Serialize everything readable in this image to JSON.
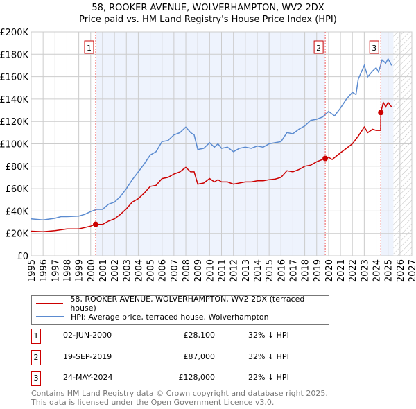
{
  "title": [
    "58, ROOKER AVENUE, WOLVERHAMPTON, WV2 2DX",
    "Price paid vs. HM Land Registry's House Price Index (HPI)"
  ],
  "chart_data": {
    "type": "line",
    "ylim": [
      0,
      200000
    ],
    "xlim": [
      1995,
      2027
    ],
    "yticks": [
      0,
      20000,
      40000,
      60000,
      80000,
      100000,
      120000,
      140000,
      160000,
      180000,
      200000
    ],
    "ytick_labels": [
      "£0",
      "£20K",
      "£40K",
      "£60K",
      "£80K",
      "£100K",
      "£120K",
      "£140K",
      "£160K",
      "£180K",
      "£200K"
    ],
    "xtick_labels": [
      "1995",
      "1996",
      "1997",
      "1998",
      "1999",
      "2000",
      "2001",
      "2002",
      "2003",
      "2004",
      "2005",
      "2006",
      "2007",
      "2008",
      "2009",
      "2010",
      "2011",
      "2012",
      "2013",
      "2014",
      "2015",
      "2016",
      "2017",
      "2018",
      "2019",
      "2020",
      "2021",
      "2022",
      "2023",
      "2024",
      "2025",
      "2026",
      "2027"
    ],
    "grid": true,
    "shaded_ranges": [
      [
        2000.42,
        2019.72
      ],
      [
        2024.39,
        2025.45
      ]
    ],
    "forecast_hatch_from": 2025.45,
    "series": [
      {
        "name": "58, ROOKER AVENUE, WOLVERHAMPTON, WV2 2DX (terraced house)",
        "color": "#cc0000",
        "x": [
          1995,
          1996,
          1997,
          1998,
          1999,
          2000,
          2000.42,
          2001,
          2001.5,
          2002,
          2002.5,
          2003,
          2003.5,
          2004,
          2004.5,
          2005,
          2005.5,
          2006,
          2006.5,
          2007,
          2007.5,
          2008,
          2008.4,
          2008.7,
          2009,
          2009.5,
          2010,
          2010.4,
          2010.7,
          2011,
          2011.5,
          2012,
          2012.5,
          2013,
          2013.5,
          2014,
          2014.5,
          2015,
          2015.5,
          2016,
          2016.5,
          2017,
          2017.5,
          2018,
          2018.5,
          2019,
          2019.72,
          2020,
          2020.3,
          2021,
          2021.5,
          2022,
          2022.5,
          2023,
          2023.3,
          2023.7,
          2024,
          2024.37,
          2024.39,
          2024.6,
          2024.8,
          2025,
          2025.3
        ],
        "y": [
          22000,
          21500,
          22500,
          24000,
          24000,
          26500,
          28100,
          28000,
          31000,
          33000,
          37000,
          42000,
          48000,
          51000,
          56000,
          62000,
          63000,
          69000,
          70000,
          73000,
          75000,
          79000,
          75000,
          75000,
          64000,
          65000,
          69000,
          66000,
          68000,
          66000,
          66000,
          64000,
          65000,
          66000,
          66000,
          67000,
          67000,
          68000,
          68500,
          70000,
          76000,
          75000,
          77000,
          80000,
          81000,
          84000,
          87000,
          88000,
          86000,
          92000,
          96000,
          100000,
          107000,
          115000,
          110000,
          113000,
          112000,
          112000,
          128000,
          137000,
          133000,
          137000,
          133000
        ]
      },
      {
        "name": "HPI: Average price, terraced house, Wolverhampton",
        "color": "#5b8bd0",
        "x": [
          1995,
          1996,
          1997,
          1997.5,
          1998,
          1999,
          1999.5,
          2000,
          2000.5,
          2001,
          2001.5,
          2002,
          2002.5,
          2003,
          2003.5,
          2004,
          2004.5,
          2005,
          2005.5,
          2006,
          2006.5,
          2007,
          2007.5,
          2008,
          2008.4,
          2008.7,
          2009,
          2009.5,
          2010,
          2010.4,
          2010.7,
          2011,
          2011.5,
          2012,
          2012.5,
          2013,
          2013.5,
          2014,
          2014.5,
          2015,
          2015.5,
          2016,
          2016.5,
          2017,
          2017.5,
          2018,
          2018.5,
          2019,
          2019.5,
          2020,
          2020.5,
          2021,
          2021.5,
          2022,
          2022.3,
          2022.5,
          2023,
          2023.3,
          2023.7,
          2024,
          2024.2,
          2024.5,
          2024.8,
          2025,
          2025.3
        ],
        "y": [
          33000,
          32000,
          33500,
          35000,
          35000,
          35500,
          37000,
          39500,
          41500,
          41500,
          46000,
          48000,
          53000,
          60000,
          68000,
          75000,
          82000,
          90000,
          93000,
          102000,
          103000,
          108000,
          110000,
          115000,
          110000,
          108000,
          95000,
          96000,
          101000,
          97000,
          100000,
          96000,
          97000,
          93000,
          96000,
          97000,
          96000,
          98000,
          97000,
          100000,
          101000,
          102000,
          110000,
          109000,
          113000,
          116000,
          121000,
          122000,
          124000,
          129000,
          125000,
          132000,
          140000,
          146000,
          144000,
          158000,
          170000,
          160000,
          165000,
          168000,
          164000,
          175000,
          172000,
          176000,
          170000
        ]
      }
    ],
    "sales": [
      {
        "label": "1",
        "x": 2000.42,
        "y": 28100
      },
      {
        "label": "2",
        "x": 2019.72,
        "y": 87000
      },
      {
        "label": "3",
        "x": 2024.39,
        "y": 128000
      }
    ]
  },
  "legend": [
    "58, ROOKER AVENUE, WOLVERHAMPTON, WV2 2DX (terraced house)",
    "HPI: Average price, terraced house, Wolverhampton"
  ],
  "table": [
    {
      "num": "1",
      "date": "02-JUN-2000",
      "price": "£28,100",
      "hpi": "32% ↓ HPI"
    },
    {
      "num": "2",
      "date": "19-SEP-2019",
      "price": "£87,000",
      "hpi": "32% ↓ HPI"
    },
    {
      "num": "3",
      "date": "24-MAY-2024",
      "price": "£128,000",
      "hpi": "22% ↓ HPI"
    }
  ],
  "footer": [
    "Contains HM Land Registry data © Crown copyright and database right 2025.",
    "This data is licensed under the Open Government Licence v3.0."
  ]
}
